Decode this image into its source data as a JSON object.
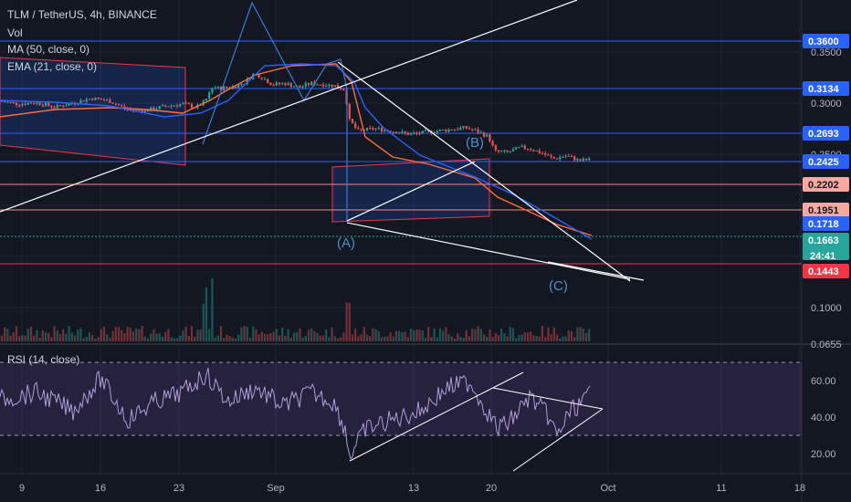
{
  "header": {
    "symbol_line": "TLM / TetherUS, 4h, BINANCE",
    "vol_label": "Vol",
    "ma_label": "MA (50, close, 0)",
    "ema_label": "EMA (21, close, 0)",
    "rsi_label": "RSI (14, close)"
  },
  "colors": {
    "background": "#131722",
    "candle_up": "#26a69a",
    "candle_down": "#ef5350",
    "ma_line": "#2962ff",
    "ema_line": "#ff6d3a",
    "level_line_blue": "#2962ff",
    "level_line_red": "#f23645",
    "rsi_band": "#7e57c2",
    "trendline": "#ffffff",
    "wave_label": "#4a90c8"
  },
  "chart_data": {
    "type": "candlestick",
    "x_tick_labels": [
      "9",
      "16",
      "23",
      "Sep",
      "13",
      "20",
      "Oct",
      "11",
      "18"
    ],
    "price_axis_labels": [
      "0.3500",
      "0.3000",
      "0.2500",
      "0.1000",
      "0.0655"
    ],
    "price_tags": [
      {
        "value": "0.3600",
        "kind": "blue"
      },
      {
        "value": "0.3134",
        "kind": "blue"
      },
      {
        "value": "0.2693",
        "kind": "blue"
      },
      {
        "value": "0.2425",
        "kind": "blue"
      },
      {
        "value": "0.2202",
        "kind": "salmon"
      },
      {
        "value": "0.1951",
        "kind": "salmon"
      },
      {
        "value": "0.1718",
        "kind": "blue"
      },
      {
        "value": "0.1663",
        "kind": "green"
      },
      {
        "value": "0.1443",
        "kind": "red"
      }
    ],
    "countdown": "24:41",
    "wave_labels": [
      "(A)",
      "(B)",
      "(C)"
    ],
    "rsi_axis_labels": [
      "60.00",
      "40.00",
      "20.00"
    ],
    "rsi_upper": 70,
    "rsi_lower": 30,
    "grid": true
  }
}
